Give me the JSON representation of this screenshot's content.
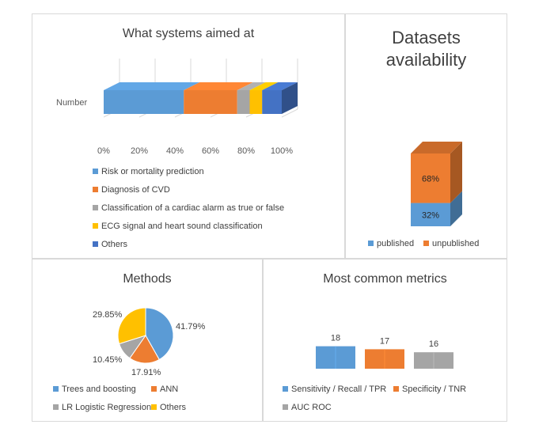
{
  "chart_data": [
    {
      "type": "bar",
      "orientation": "horizontal-stacked-100",
      "title": "What systems aimed at",
      "categories": [
        "Number"
      ],
      "xticks": [
        "0%",
        "20%",
        "40%",
        "60%",
        "80%",
        "100%"
      ],
      "xlim": [
        0,
        100
      ],
      "series": [
        {
          "name": "Risk or mortality prediction",
          "values": [
            45
          ],
          "color": "#5b9bd5"
        },
        {
          "name": "Diagnosis of CVD",
          "values": [
            30
          ],
          "color": "#ed7d31"
        },
        {
          "name": "Classification of a cardiac alarm as true or false",
          "values": [
            7
          ],
          "color": "#a5a5a5"
        },
        {
          "name": "ECG signal and heart sound classification",
          "values": [
            7
          ],
          "color": "#ffc000"
        },
        {
          "name": "Others",
          "values": [
            11
          ],
          "color": "#4472c4"
        }
      ],
      "grid": true,
      "legend": "bottom"
    },
    {
      "type": "bar",
      "orientation": "vertical-stacked-100",
      "title": "Datasets availability",
      "series": [
        {
          "name": "published",
          "values": [
            32
          ],
          "label": "32%",
          "color": "#5b9bd5"
        },
        {
          "name": "unpublished",
          "values": [
            68
          ],
          "label": "68%",
          "color": "#ed7d31"
        }
      ],
      "legend": "bottom"
    },
    {
      "type": "pie",
      "title": "Methods",
      "slices": [
        {
          "name": "Trees and boosting",
          "value": 41.79,
          "label": "41.79%",
          "color": "#5b9bd5"
        },
        {
          "name": "ANN",
          "value": 17.91,
          "label": "17.91%",
          "color": "#ed7d31"
        },
        {
          "name": "LR Logistic Regression",
          "value": 10.45,
          "label": "10.45%",
          "color": "#a5a5a5"
        },
        {
          "name": "Others",
          "value": 29.85,
          "label": "29.85%",
          "color": "#ffc000"
        }
      ],
      "legend": "bottom"
    },
    {
      "type": "bar",
      "title": "Most common metrics",
      "series": [
        {
          "name": "Sensitivity / Recall / TPR",
          "values": [
            18
          ],
          "label": "18",
          "color": "#5b9bd5"
        },
        {
          "name": "Specificity / TNR",
          "values": [
            17
          ],
          "label": "17",
          "color": "#ed7d31"
        },
        {
          "name": "AUC ROC",
          "values": [
            16
          ],
          "label": "16",
          "color": "#a5a5a5"
        }
      ],
      "legend": "bottom"
    }
  ]
}
